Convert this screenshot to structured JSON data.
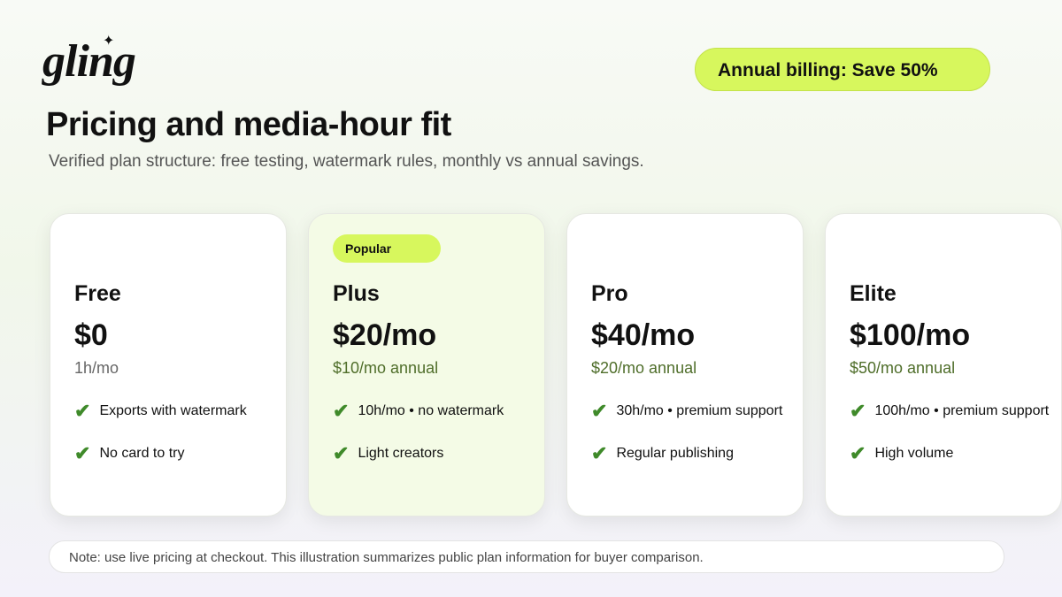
{
  "header": {
    "logo": "gling",
    "badge": "Annual billing: Save 50%",
    "title": "Pricing and media-hour fit",
    "subtitle": "Verified plan structure: free testing, watermark rules, monthly vs annual savings."
  },
  "plans": [
    {
      "name": "Free",
      "price": "$0",
      "sub": "1h/mo",
      "features": [
        "Exports with watermark",
        "No card to try"
      ]
    },
    {
      "tag": "Popular",
      "name": "Plus",
      "price": "$20/mo",
      "sub": "$10/mo annual",
      "features": [
        "10h/mo • no watermark",
        "Light creators"
      ]
    },
    {
      "name": "Pro",
      "price": "$40/mo",
      "sub": "$20/mo annual",
      "features": [
        "30h/mo • premium support",
        "Regular publishing"
      ]
    },
    {
      "name": "Elite",
      "price": "$100/mo",
      "sub": "$50/mo annual",
      "features": [
        "100h/mo • premium support",
        "High volume"
      ]
    }
  ],
  "note": "Note: use live pricing at checkout. This illustration summarizes public plan information for buyer comparison."
}
